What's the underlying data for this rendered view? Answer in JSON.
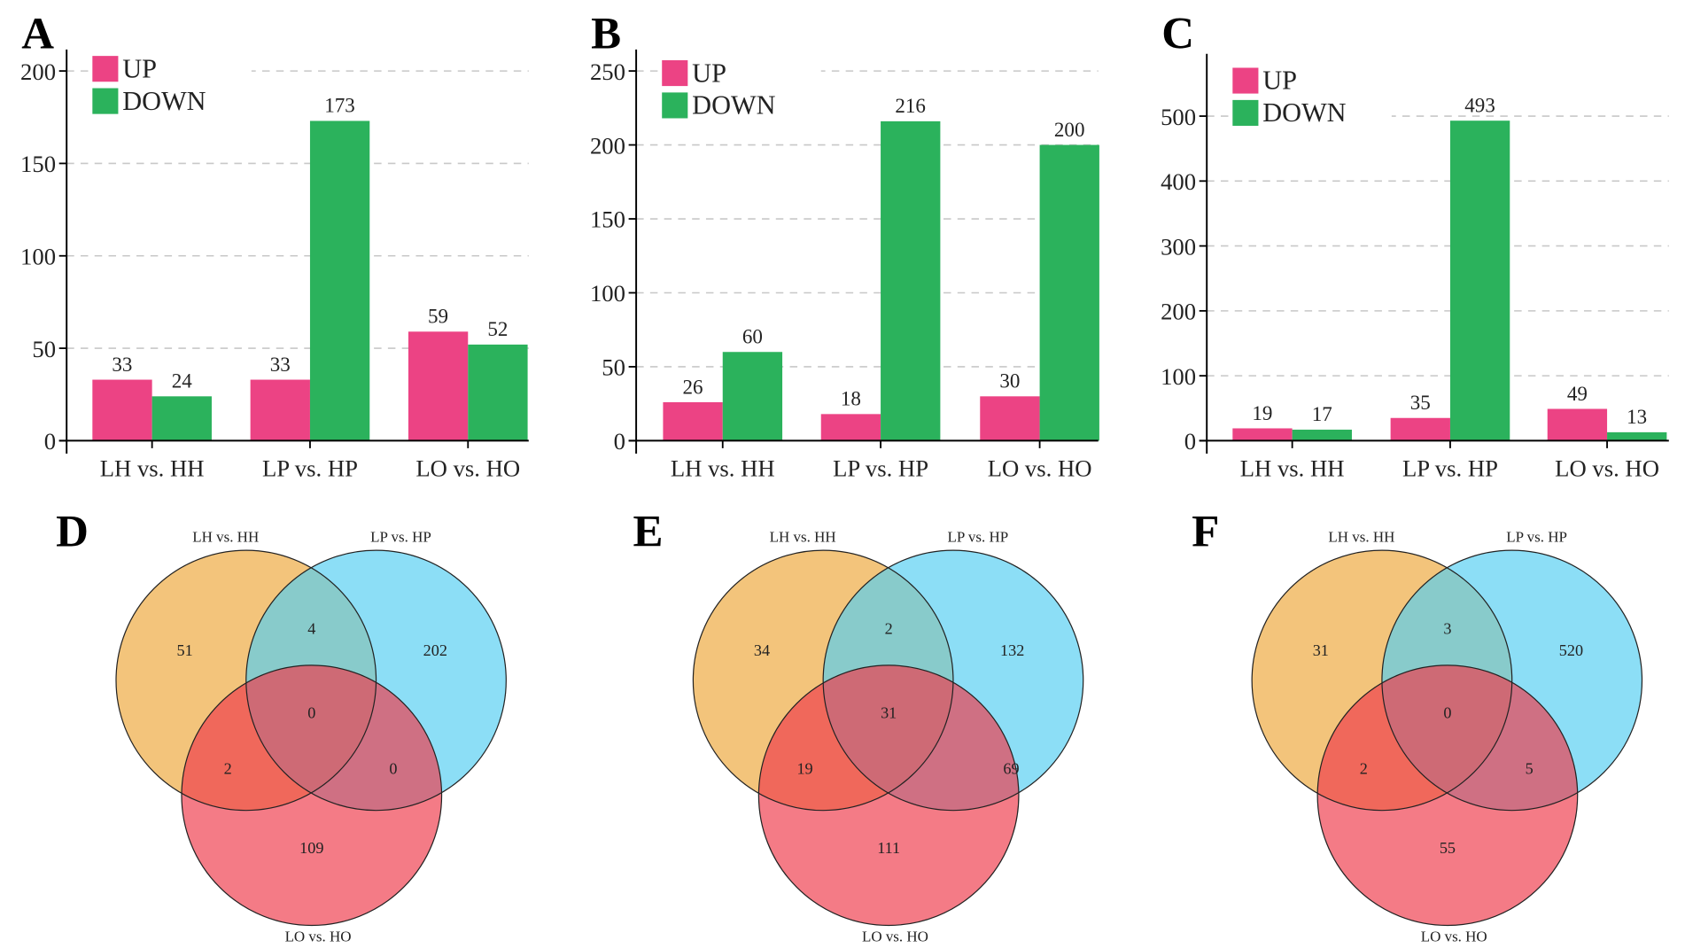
{
  "colors": {
    "up": "#ec4384",
    "down": "#2bb25c",
    "set1": "#eea83d",
    "set2": "#56cff1",
    "set3": "#ef3d4c"
  },
  "chart_data": [
    {
      "type": "bar",
      "panel": "A",
      "categories": [
        "LH vs. HH",
        "LP vs. HP",
        "LO vs. HO"
      ],
      "series": [
        {
          "name": "UP",
          "values": [
            33,
            33,
            59
          ]
        },
        {
          "name": "DOWN",
          "values": [
            24,
            173,
            52
          ]
        }
      ],
      "ylim": [
        0,
        200
      ],
      "yticks": [
        0,
        50,
        100,
        150,
        200
      ],
      "grid": true,
      "legend": "top-left"
    },
    {
      "type": "bar",
      "panel": "B",
      "categories": [
        "LH vs. HH",
        "LP vs. HP",
        "LO vs. HO"
      ],
      "series": [
        {
          "name": "UP",
          "values": [
            26,
            18,
            30
          ]
        },
        {
          "name": "DOWN",
          "values": [
            60,
            216,
            200
          ]
        }
      ],
      "ylim": [
        0,
        250
      ],
      "yticks": [
        0,
        50,
        100,
        150,
        200,
        250
      ],
      "grid": true,
      "legend": "top-left"
    },
    {
      "type": "bar",
      "panel": "C",
      "categories": [
        "LH vs. HH",
        "LP vs. HP",
        "LO vs. HO"
      ],
      "series": [
        {
          "name": "UP",
          "values": [
            19,
            35,
            49
          ]
        },
        {
          "name": "DOWN",
          "values": [
            17,
            493,
            13
          ]
        }
      ],
      "ylim": [
        0,
        600
      ],
      "yticks": [
        0,
        100,
        200,
        300,
        400,
        500
      ],
      "grid": true,
      "legend": "top-left"
    },
    {
      "type": "venn",
      "panel": "D",
      "sets": [
        "LH vs. HH",
        "LP vs. HP",
        "LO vs. HO"
      ],
      "regions": {
        "only1": 51,
        "only2": 202,
        "only3": 109,
        "1and2": 4,
        "1and3": 2,
        "2and3": 0,
        "all": 0
      }
    },
    {
      "type": "venn",
      "panel": "E",
      "sets": [
        "LH vs. HH",
        "LP vs. HP",
        "LO vs. HO"
      ],
      "regions": {
        "only1": 34,
        "only2": 132,
        "only3": 111,
        "1and2": 2,
        "1and3": 19,
        "2and3": 69,
        "all": 31
      }
    },
    {
      "type": "venn",
      "panel": "F",
      "sets": [
        "LH vs. HH",
        "LP vs. HP",
        "LO vs. HO"
      ],
      "regions": {
        "only1": 31,
        "only2": 520,
        "only3": 55,
        "1and2": 3,
        "1and3": 2,
        "2and3": 5,
        "all": 0
      }
    }
  ]
}
